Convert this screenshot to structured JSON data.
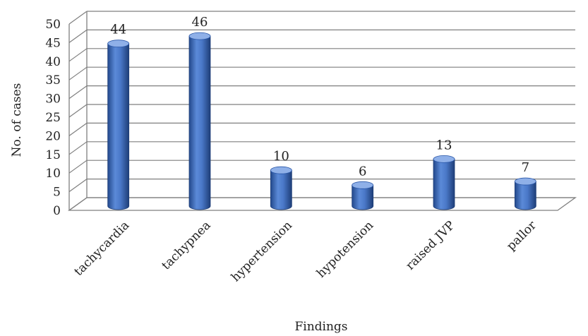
{
  "chart_data": {
    "type": "bar",
    "style": "3d-cylinder",
    "categories": [
      "tachycardia",
      "tachypnea",
      "hypertension",
      "hypotension",
      "raised JVP",
      "pallor"
    ],
    "values": [
      44,
      46,
      10,
      6,
      13,
      7
    ],
    "data_labels": [
      "44",
      "46",
      "10",
      "6",
      "13",
      "7"
    ],
    "y_ticks": [
      "0",
      "5",
      "10",
      "15",
      "20",
      "25",
      "30",
      "35",
      "40",
      "45",
      "50"
    ],
    "title": "",
    "xlabel": "Findings",
    "ylabel": "No. of cases",
    "ylim": [
      0,
      50
    ],
    "grid": true,
    "legend": "none",
    "colors": {
      "bar": "#4472c4",
      "bar_dark": "#1f3f7a",
      "bar_light": "#8fb0e8",
      "grid": "#7f7f7f"
    }
  }
}
